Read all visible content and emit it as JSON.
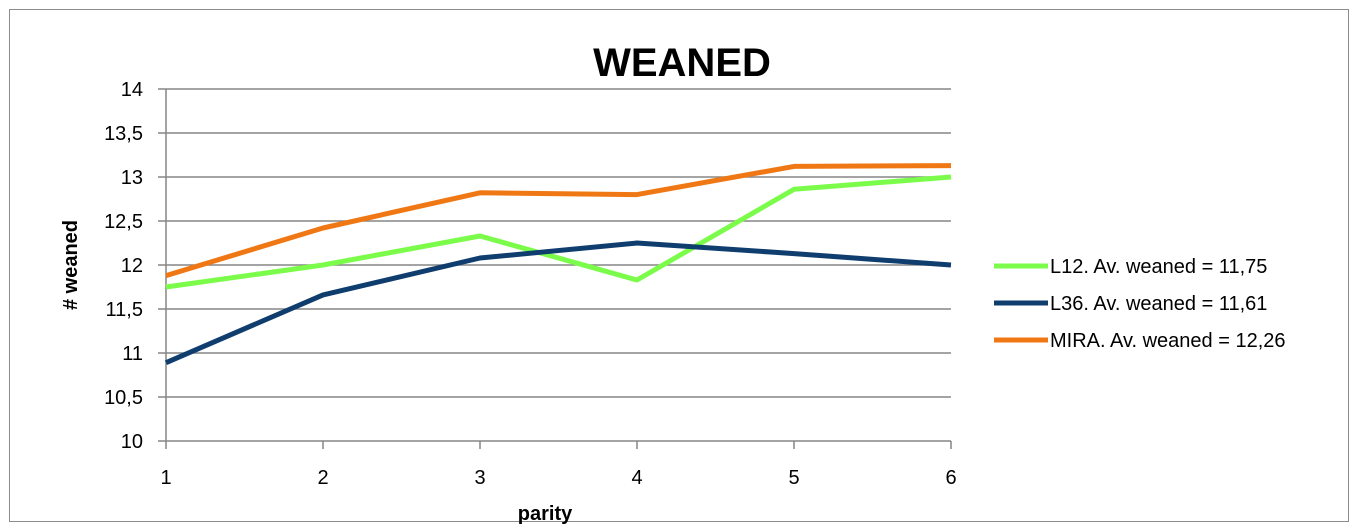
{
  "chart_data": {
    "type": "line",
    "title": "WEANED",
    "xlabel": "parity",
    "ylabel": "# weaned",
    "x": [
      1,
      2,
      3,
      4,
      5,
      6
    ],
    "x_tick_labels": [
      "1",
      "2",
      "3",
      "4",
      "5",
      "6"
    ],
    "ylim": [
      10,
      14
    ],
    "y_ticks": [
      10,
      10.5,
      11,
      11.5,
      12,
      12.5,
      13,
      13.5,
      14
    ],
    "y_tick_labels": [
      "10",
      "10,5",
      "11",
      "11,5",
      "12",
      "12,5",
      "13",
      "13,5",
      "14"
    ],
    "grid": true,
    "legend_position": "right",
    "series": [
      {
        "name": "L12. Av. weaned = 11,75",
        "color": "#7CFC4A",
        "values": [
          11.75,
          12.0,
          12.33,
          11.83,
          12.86,
          13.0
        ]
      },
      {
        "name": "L36. Av. weaned = 11,61",
        "color": "#0F3D6E",
        "values": [
          10.89,
          11.66,
          12.08,
          12.25,
          12.13,
          12.0
        ]
      },
      {
        "name": "MIRA. Av. weaned = 12,26",
        "color": "#F07814",
        "values": [
          11.88,
          12.42,
          12.82,
          12.8,
          13.12,
          13.13
        ]
      }
    ]
  }
}
